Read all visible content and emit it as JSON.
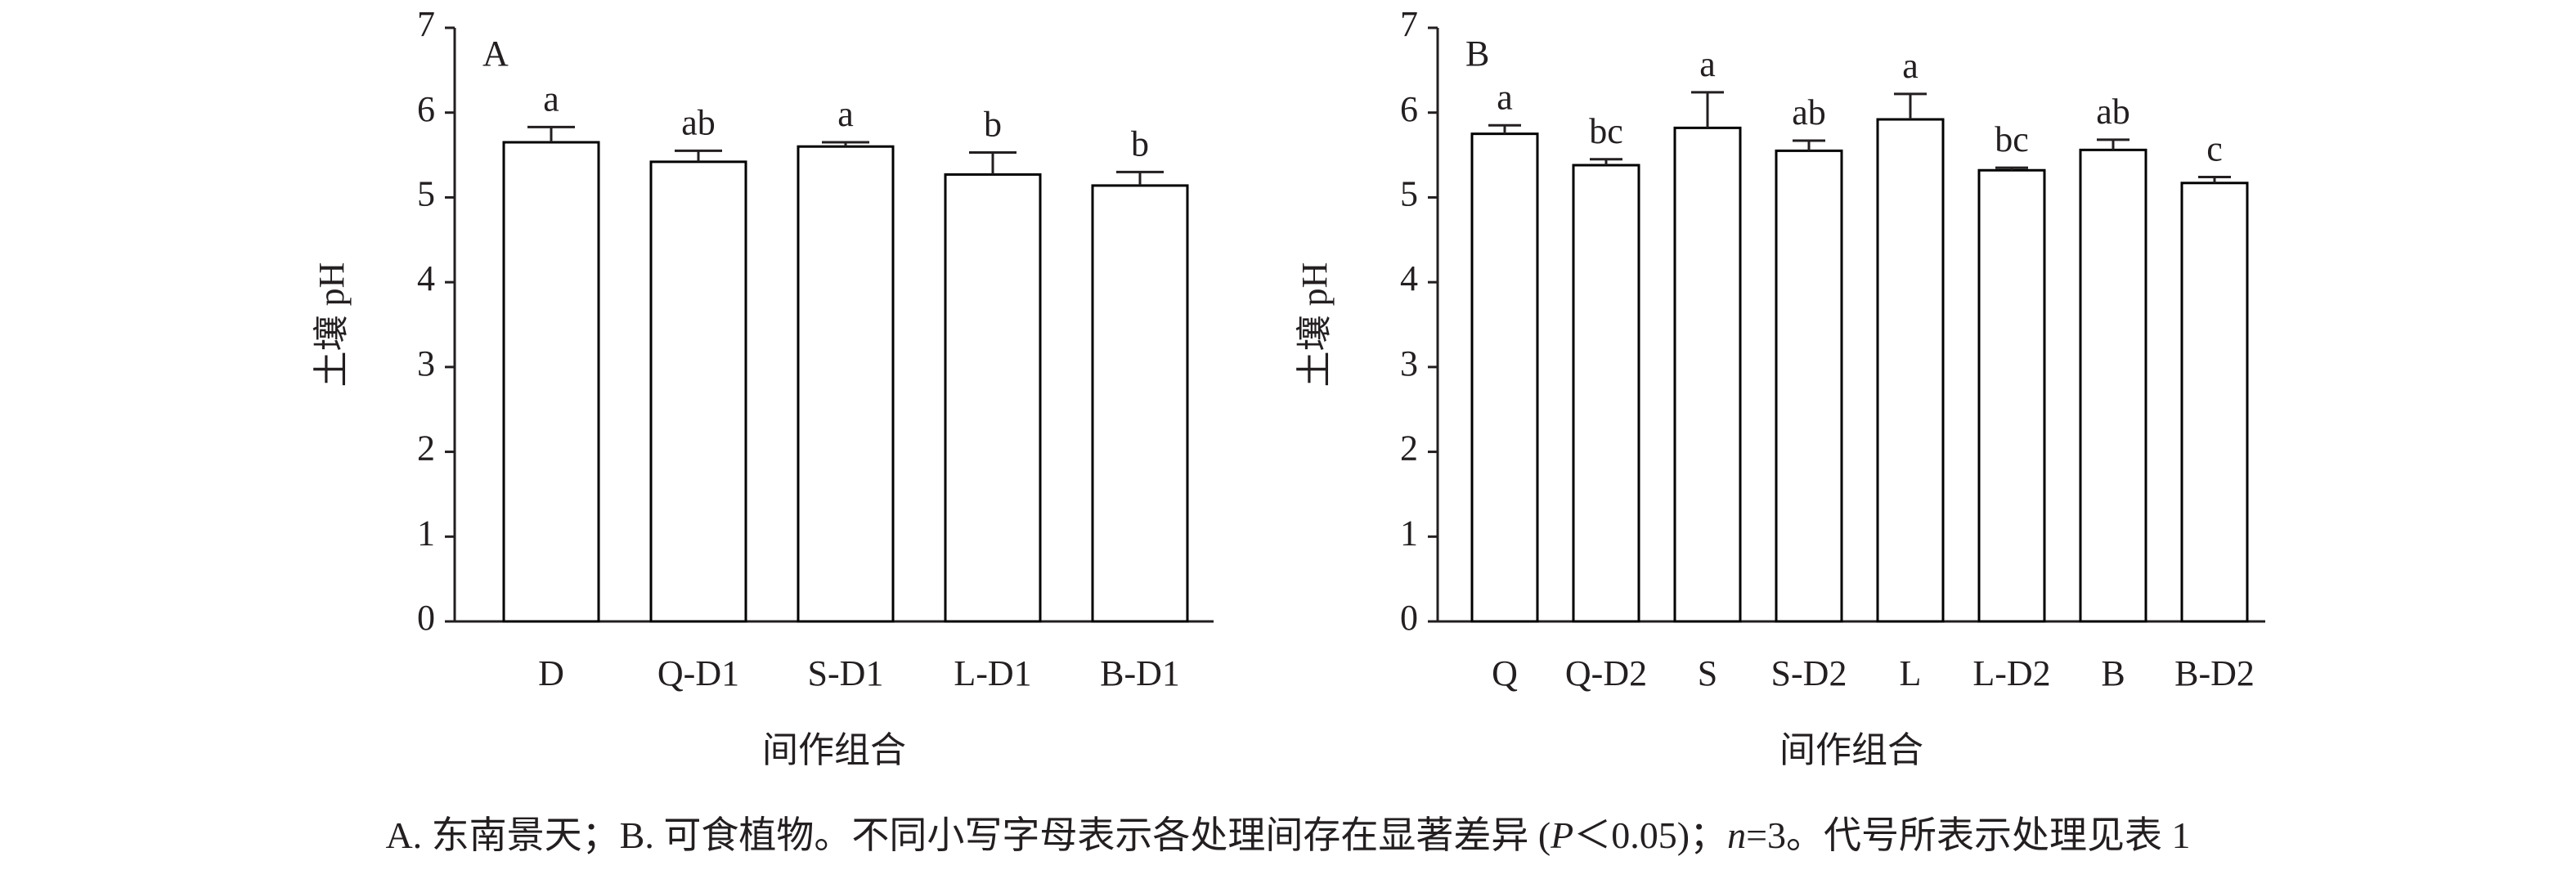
{
  "chart_data": [
    {
      "type": "bar",
      "panel_label": "A",
      "xlabel": "间作组合",
      "ylabel": "土壤 pH",
      "categories": [
        "D",
        "Q-D1",
        "S-D1",
        "L-D1",
        "B-D1"
      ],
      "values": [
        5.65,
        5.42,
        5.6,
        5.27,
        5.14
      ],
      "errors": [
        0.18,
        0.13,
        0.05,
        0.26,
        0.16
      ],
      "annotations": [
        "a",
        "ab",
        "a",
        "b",
        "b"
      ],
      "color": "#ffffff",
      "edge_color": "#000000",
      "ylim": [
        0,
        7
      ],
      "yticks": [
        0,
        1,
        2,
        3,
        4,
        5,
        6,
        7
      ],
      "grid": false
    },
    {
      "type": "bar",
      "panel_label": "B",
      "xlabel": "间作组合",
      "ylabel": "土壤 pH",
      "categories": [
        "Q",
        "Q-D2",
        "S",
        "S-D2",
        "L",
        "L-D2",
        "B",
        "B-D2"
      ],
      "values": [
        5.75,
        5.38,
        5.82,
        5.55,
        5.92,
        5.32,
        5.56,
        5.17
      ],
      "errors": [
        0.1,
        0.07,
        0.42,
        0.12,
        0.3,
        0.03,
        0.12,
        0.07
      ],
      "annotations": [
        "a",
        "bc",
        "a",
        "ab",
        "a",
        "bc",
        "ab",
        "c"
      ],
      "color": "#ffffff",
      "edge_color": "#000000",
      "ylim": [
        0,
        7
      ],
      "yticks": [
        0,
        1,
        2,
        3,
        4,
        5,
        6,
        7
      ],
      "grid": false
    }
  ],
  "caption": [
    "A. 东南景天；B. 可食植物。不同小写字母表示各处理间存在显著差异 (",
    "P",
    "＜0.05)；",
    "n",
    "=3。代号所表示处理见表 1"
  ]
}
